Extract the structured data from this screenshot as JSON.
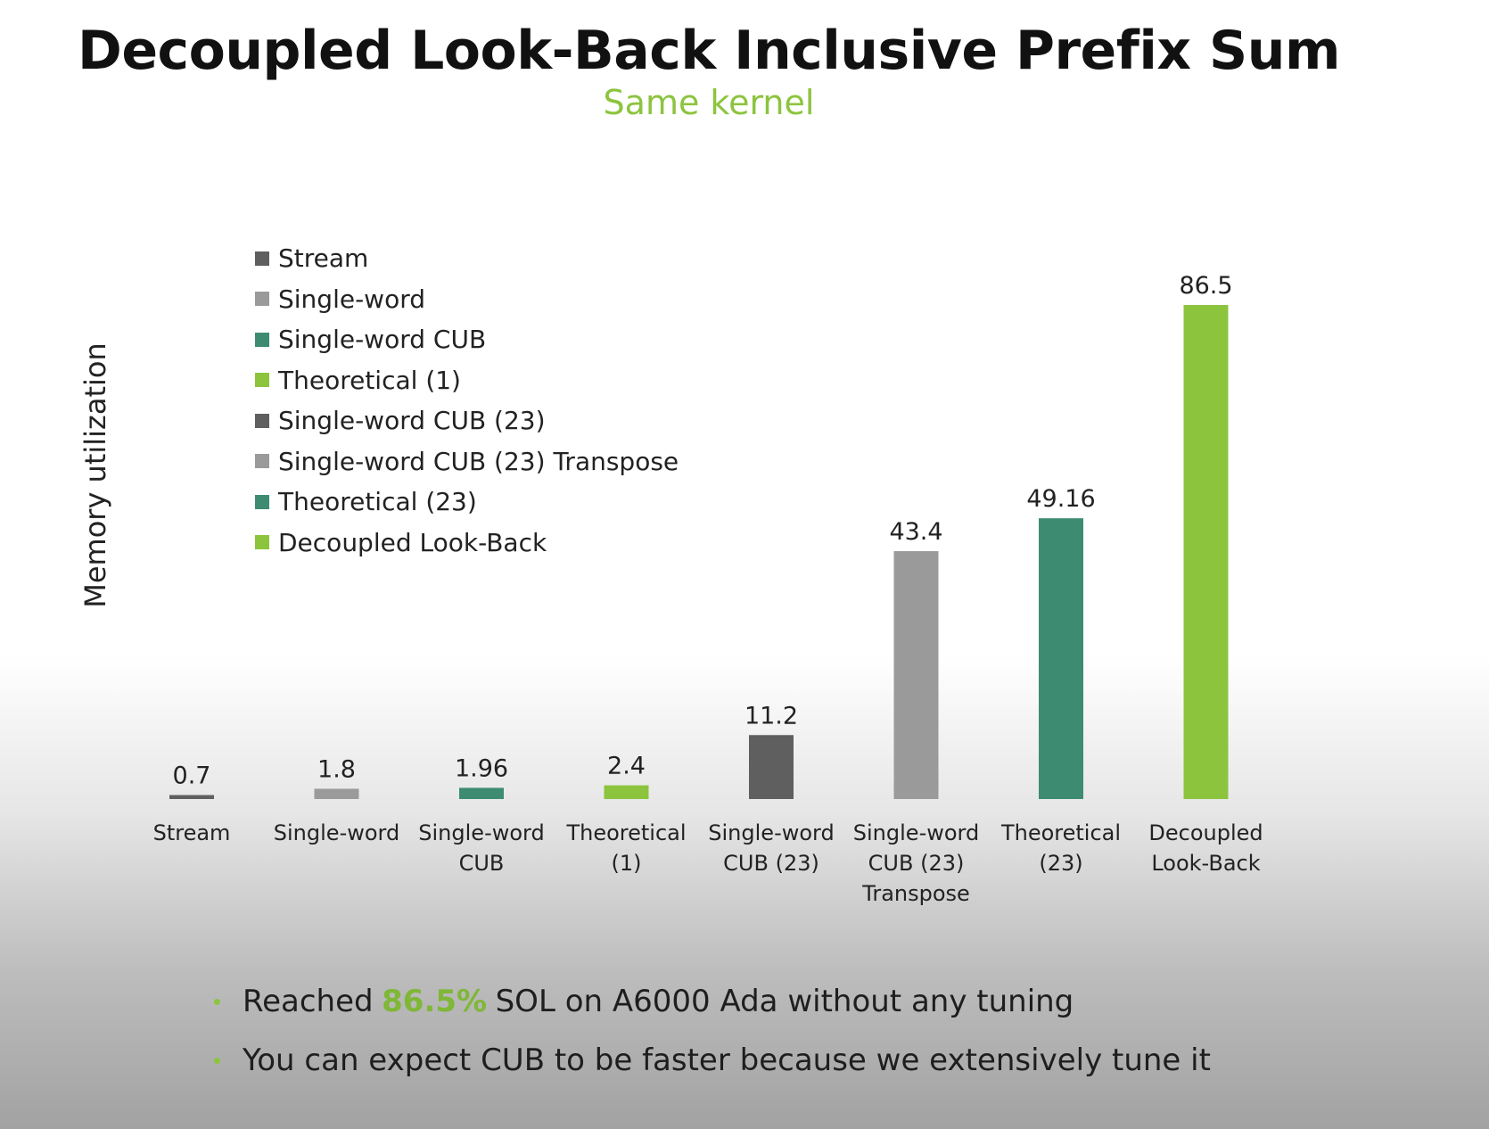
{
  "colors": {
    "stream": "#5f5f5f",
    "single_word": "#9a9a9a",
    "cub": "#3d8c72",
    "theoretical": "#8cc43e",
    "accent": "#8cc43e",
    "axis_text": "#222222"
  },
  "bullets": [
    {
      "pre": "Reached",
      "highlight": "86.5%",
      "post": "SOL on A6000 Ada without any tuning"
    },
    {
      "pre": "You can expect CUB to be faster because we extensively tune it",
      "highlight": "",
      "post": ""
    }
  ],
  "chart_data": {
    "type": "bar",
    "title": "Decoupled Look-Back Inclusive Prefix Sum",
    "subtitle": "Same kernel",
    "xlabel": "",
    "ylabel": "Memory utilization",
    "ylim": [
      0,
      86.5
    ],
    "grid": false,
    "legend_position": "top-left",
    "categories": [
      [
        "Stream"
      ],
      [
        "Single-word"
      ],
      [
        "Single-word",
        "CUB"
      ],
      [
        "Theoretical",
        "(1)"
      ],
      [
        "Single-word",
        "CUB (23)"
      ],
      [
        "Single-word",
        "CUB (23)",
        "Transpose"
      ],
      [
        "Theoretical",
        "(23)"
      ],
      [
        "Decoupled",
        "Look-Back"
      ]
    ],
    "values": [
      0.7,
      1.8,
      1.96,
      2.4,
      11.2,
      43.4,
      49.16,
      86.5
    ],
    "value_labels": [
      "0.7",
      "1.8",
      "1.96",
      "2.4",
      "11.2",
      "43.4",
      "49.16",
      "86.5"
    ],
    "bar_colors": [
      "#5f5f5f",
      "#9a9a9a",
      "#3d8c72",
      "#8cc43e",
      "#5f5f5f",
      "#9a9a9a",
      "#3d8c72",
      "#8cc43e"
    ],
    "legend": [
      {
        "label": "Stream",
        "color": "#5f5f5f"
      },
      {
        "label": "Single-word",
        "color": "#9a9a9a"
      },
      {
        "label": "Single-word CUB",
        "color": "#3d8c72"
      },
      {
        "label": "Theoretical (1)",
        "color": "#8cc43e"
      },
      {
        "label": "Single-word CUB (23)",
        "color": "#5f5f5f"
      },
      {
        "label": "Single-word CUB (23) Transpose",
        "color": "#9a9a9a"
      },
      {
        "label": "Theoretical (23)",
        "color": "#3d8c72"
      },
      {
        "label": "Decoupled Look-Back",
        "color": "#8cc43e"
      }
    ]
  }
}
